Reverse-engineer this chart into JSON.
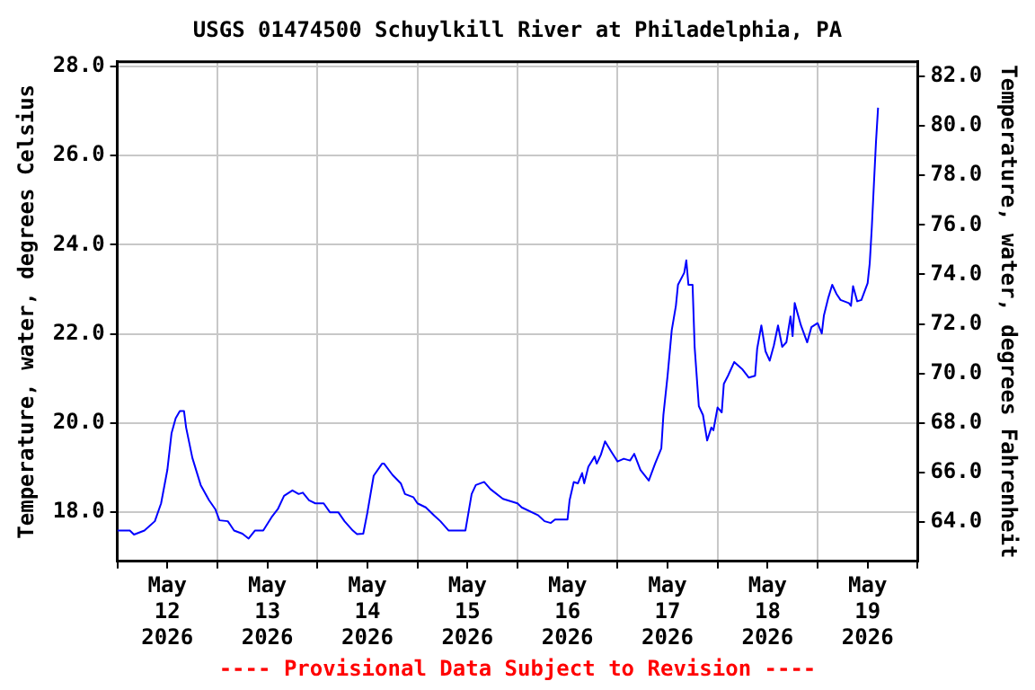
{
  "chart_data": {
    "type": "line",
    "title": "USGS 01474500 Schuylkill River at Philadelphia, PA",
    "ylabel": "Temperature, water, degrees Celsius",
    "y2label": "Temperature, water, degrees Fahrenheit",
    "annotations": [
      "---- Provisional Data Subject to Revision ----"
    ],
    "x": [
      "2026-05-12T00:00",
      "2026-05-12T03:00",
      "2026-05-12T04:00",
      "2026-05-12T06:30",
      "2026-05-12T09:00",
      "2026-05-12T10:30",
      "2026-05-12T12:00",
      "2026-05-12T13:00",
      "2026-05-12T14:00",
      "2026-05-12T15:00",
      "2026-05-12T16:00",
      "2026-05-12T16:30",
      "2026-05-12T18:00",
      "2026-05-12T20:00",
      "2026-05-12T22:00",
      "2026-05-12T23:30",
      "2026-05-13T00:30",
      "2026-05-13T02:30",
      "2026-05-13T04:00",
      "2026-05-13T06:00",
      "2026-05-13T07:30",
      "2026-05-13T09:00",
      "2026-05-13T11:00",
      "2026-05-13T13:00",
      "2026-05-13T14:30",
      "2026-05-13T16:00",
      "2026-05-13T18:00",
      "2026-05-13T19:30",
      "2026-05-13T20:30",
      "2026-05-13T22:00",
      "2026-05-13T23:30",
      "2026-05-14T01:30",
      "2026-05-14T03:00",
      "2026-05-14T05:00",
      "2026-05-14T06:30",
      "2026-05-14T08:30",
      "2026-05-14T09:30",
      "2026-05-14T11:00",
      "2026-05-14T12:00",
      "2026-05-14T13:30",
      "2026-05-14T15:30",
      "2026-05-14T16:00",
      "2026-05-14T18:00",
      "2026-05-14T20:00",
      "2026-05-14T21:00",
      "2026-05-14T23:00",
      "2026-05-15T00:00",
      "2026-05-15T02:00",
      "2026-05-15T04:00",
      "2026-05-15T05:30",
      "2026-05-15T07:30",
      "2026-05-15T11:30",
      "2026-05-15T13:00",
      "2026-05-15T14:00",
      "2026-05-15T16:00",
      "2026-05-15T17:30",
      "2026-05-15T20:30",
      "2026-05-16T00:00",
      "2026-05-16T01:00",
      "2026-05-16T05:00",
      "2026-05-16T06:30",
      "2026-05-16T08:00",
      "2026-05-16T09:00",
      "2026-05-16T12:00",
      "2026-05-16T12:30",
      "2026-05-16T13:30",
      "2026-05-16T14:30",
      "2026-05-16T15:30",
      "2026-05-16T16:00",
      "2026-05-16T17:00",
      "2026-05-16T18:30",
      "2026-05-16T19:00",
      "2026-05-16T20:00",
      "2026-05-16T21:00",
      "2026-05-16T22:30",
      "2026-05-17T00:00",
      "2026-05-17T01:30",
      "2026-05-17T03:00",
      "2026-05-17T04:00",
      "2026-05-17T05:30",
      "2026-05-17T07:30",
      "2026-05-17T09:00",
      "2026-05-17T10:30",
      "2026-05-17T11:00",
      "2026-05-17T12:00",
      "2026-05-17T13:00",
      "2026-05-17T14:00",
      "2026-05-17T14:30",
      "2026-05-17T16:00",
      "2026-05-17T16:30",
      "2026-05-17T17:00",
      "2026-05-17T18:00",
      "2026-05-17T18:30",
      "2026-05-17T19:30",
      "2026-05-17T20:30",
      "2026-05-17T21:30",
      "2026-05-17T22:30",
      "2026-05-17T23:00",
      "2026-05-18T00:00",
      "2026-05-18T01:00",
      "2026-05-18T01:30",
      "2026-05-18T02:30",
      "2026-05-18T04:00",
      "2026-05-18T06:00",
      "2026-05-18T07:30",
      "2026-05-18T09:00",
      "2026-05-18T09:30",
      "2026-05-18T10:30",
      "2026-05-18T11:30",
      "2026-05-18T12:30",
      "2026-05-18T13:30",
      "2026-05-18T14:30",
      "2026-05-18T15:30",
      "2026-05-18T16:30",
      "2026-05-18T17:30",
      "2026-05-18T18:00",
      "2026-05-18T18:30",
      "2026-05-18T20:00",
      "2026-05-18T21:30",
      "2026-05-18T22:30",
      "2026-05-19T00:00",
      "2026-05-19T01:00",
      "2026-05-19T01:30",
      "2026-05-19T02:30",
      "2026-05-19T03:30",
      "2026-05-19T04:30",
      "2026-05-19T05:30",
      "2026-05-19T07:30",
      "2026-05-19T08:00",
      "2026-05-19T08:30",
      "2026-05-19T09:30",
      "2026-05-19T10:30",
      "2026-05-19T12:00",
      "2026-05-19T12:30",
      "2026-05-19T13:00",
      "2026-05-19T13:30",
      "2026-05-19T14:00",
      "2026-05-19T14:30"
    ],
    "series": [
      {
        "color": "#0000ff",
        "values": [
          17.59,
          17.59,
          17.5,
          17.59,
          17.8,
          18.2,
          18.95,
          19.77,
          20.11,
          20.27,
          20.27,
          19.9,
          19.22,
          18.61,
          18.27,
          18.07,
          17.82,
          17.8,
          17.59,
          17.52,
          17.41,
          17.59,
          17.59,
          17.89,
          18.07,
          18.37,
          18.49,
          18.41,
          18.44,
          18.27,
          18.2,
          18.2,
          18.0,
          18.0,
          17.8,
          17.59,
          17.51,
          17.52,
          18.0,
          18.82,
          19.09,
          19.09,
          18.84,
          18.65,
          18.41,
          18.34,
          18.2,
          18.11,
          17.93,
          17.8,
          17.59,
          17.59,
          18.41,
          18.61,
          18.68,
          18.52,
          18.3,
          18.2,
          18.11,
          17.93,
          17.8,
          17.76,
          17.84,
          17.84,
          18.27,
          18.68,
          18.65,
          18.88,
          18.65,
          19.02,
          19.25,
          19.09,
          19.29,
          19.59,
          19.36,
          19.14,
          19.2,
          19.16,
          19.31,
          18.95,
          18.71,
          19.09,
          19.43,
          20.18,
          21.06,
          22.08,
          22.63,
          23.1,
          23.37,
          23.65,
          23.1,
          23.1,
          21.7,
          20.38,
          20.18,
          19.61,
          19.9,
          19.84,
          20.35,
          20.24,
          20.88,
          21.06,
          21.37,
          21.2,
          21.02,
          21.06,
          21.67,
          22.19,
          21.61,
          21.4,
          21.74,
          22.19,
          21.71,
          21.81,
          22.39,
          21.95,
          22.69,
          22.19,
          21.81,
          22.15,
          22.24,
          22.01,
          22.41,
          22.79,
          23.1,
          22.9,
          22.76,
          22.69,
          22.63,
          23.07,
          22.73,
          22.76,
          23.14,
          23.58,
          24.39,
          25.35,
          26.3,
          27.07
        ]
      }
    ],
    "xlim": [
      "2026-05-12",
      "2026-05-20"
    ],
    "xticks": [
      {
        "value": "2026-05-12",
        "label": null
      },
      {
        "value": "2026-05-12T12:00",
        "label": "May\n12\n2026"
      },
      {
        "value": "2026-05-13",
        "label": null
      },
      {
        "value": "2026-05-13T12:00",
        "label": "May\n13\n2026"
      },
      {
        "value": "2026-05-14",
        "label": null
      },
      {
        "value": "2026-05-14T12:00",
        "label": "May\n14\n2026"
      },
      {
        "value": "2026-05-15",
        "label": null
      },
      {
        "value": "2026-05-15T12:00",
        "label": "May\n15\n2026"
      },
      {
        "value": "2026-05-16",
        "label": null
      },
      {
        "value": "2026-05-16T12:00",
        "label": "May\n16\n2026"
      },
      {
        "value": "2026-05-17",
        "label": null
      },
      {
        "value": "2026-05-17T12:00",
        "label": "May\n17\n2026"
      },
      {
        "value": "2026-05-18",
        "label": null
      },
      {
        "value": "2026-05-18T12:00",
        "label": "May\n18\n2026"
      },
      {
        "value": "2026-05-19",
        "label": null
      },
      {
        "value": "2026-05-19T12:00",
        "label": "May\n19\n2026"
      },
      {
        "value": "2026-05-20",
        "label": null
      }
    ],
    "ylim": [
      16.9,
      28.1
    ],
    "yticks": [
      {
        "value": 18,
        "label": "18.0"
      },
      {
        "value": 20,
        "label": "20.0"
      },
      {
        "value": 22,
        "label": "22.0"
      },
      {
        "value": 24,
        "label": "24.0"
      },
      {
        "value": 26,
        "label": "26.0"
      },
      {
        "value": 28,
        "label": "28.0"
      }
    ],
    "y2lim": [
      62.42,
      82.58
    ],
    "y2ticks": [
      {
        "value": 64,
        "label": "64.0"
      },
      {
        "value": 66,
        "label": "66.0"
      },
      {
        "value": 68,
        "label": "68.0"
      },
      {
        "value": 70,
        "label": "70.0"
      },
      {
        "value": 72,
        "label": "72.0"
      },
      {
        "value": 74,
        "label": "74.0"
      },
      {
        "value": 76,
        "label": "76.0"
      },
      {
        "value": 78,
        "label": "78.0"
      },
      {
        "value": 80,
        "label": "80.0"
      },
      {
        "value": 82,
        "label": "82.0"
      }
    ],
    "grid": true,
    "legend": false
  }
}
